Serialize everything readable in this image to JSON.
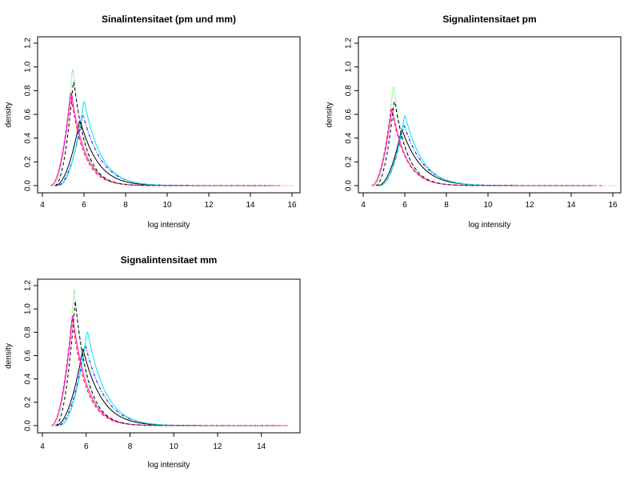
{
  "chart_data": [
    {
      "type": "line",
      "title": "Sinalintensitaet (pm und mm)",
      "xlabel": "log intensity",
      "ylabel": "density",
      "xlim": [
        4,
        16
      ],
      "ylim": [
        0,
        1.2
      ],
      "xticks": [
        "4",
        "6",
        "8",
        "10",
        "12",
        "14",
        "16"
      ],
      "yticks": [
        "0.0",
        "0.2",
        "0.4",
        "0.6",
        "0.8",
        "1.0",
        "1.2"
      ],
      "grid": false,
      "series": [
        {
          "color": "#000000",
          "dash": "solid",
          "start": 4.6,
          "mode": 5.8,
          "peak": 0.56,
          "end": 15.2,
          "k": 1.5,
          "up": 2.0
        },
        {
          "color": "#ff0000",
          "dash": "dashed",
          "start": 4.4,
          "mode": 5.35,
          "peak": 0.78,
          "end": 15.6,
          "k": 1.9,
          "up": 2.0
        },
        {
          "color": "#00cd00",
          "dash": "dotted",
          "start": 4.5,
          "mode": 5.45,
          "peak": 1.01,
          "end": 15.0,
          "k": 2.1,
          "up": 2.0
        },
        {
          "color": "#0000ff",
          "dash": "dotdash",
          "start": 4.7,
          "mode": 5.95,
          "peak": 0.6,
          "end": 15.0,
          "k": 1.45,
          "up": 2.0
        },
        {
          "color": "#00e5ee",
          "dash": "solid",
          "start": 4.8,
          "mode": 6.0,
          "peak": 0.72,
          "end": 15.0,
          "k": 1.55,
          "up": 2.0
        },
        {
          "color": "#ff00ff",
          "dash": "solid",
          "start": 4.4,
          "mode": 5.38,
          "peak": 0.8,
          "end": 15.2,
          "k": 1.85,
          "up": 2.0
        },
        {
          "color": "#000000",
          "dash": "dashed",
          "start": 4.6,
          "mode": 5.5,
          "peak": 0.9,
          "end": 15.0,
          "k": 2.0,
          "up": 2.0
        },
        {
          "color": "#ff6a6a",
          "dash": "dotted",
          "start": 4.4,
          "mode": 5.4,
          "peak": 0.75,
          "end": 16.1,
          "k": 1.9,
          "up": 2.0
        }
      ]
    },
    {
      "type": "line",
      "title": "Signalintensitaet pm",
      "xlabel": "log intensity",
      "ylabel": "density",
      "xlim": [
        4,
        16
      ],
      "ylim": [
        0,
        1.2
      ],
      "xticks": [
        "4",
        "6",
        "8",
        "10",
        "12",
        "14",
        "16"
      ],
      "yticks": [
        "0.0",
        "0.2",
        "0.4",
        "0.6",
        "0.8",
        "1.0",
        "1.2"
      ],
      "grid": false,
      "series": [
        {
          "color": "#000000",
          "dash": "solid",
          "start": 4.7,
          "mode": 5.85,
          "peak": 0.48,
          "end": 15.1,
          "k": 1.4,
          "up": 2.0
        },
        {
          "color": "#ff0000",
          "dash": "dashed",
          "start": 4.4,
          "mode": 5.35,
          "peak": 0.66,
          "end": 15.5,
          "k": 1.8,
          "up": 2.0
        },
        {
          "color": "#00cd00",
          "dash": "dotted",
          "start": 4.5,
          "mode": 5.45,
          "peak": 0.85,
          "end": 15.0,
          "k": 2.0,
          "up": 2.0
        },
        {
          "color": "#0000ff",
          "dash": "dotdash",
          "start": 4.8,
          "mode": 5.95,
          "peak": 0.52,
          "end": 15.0,
          "k": 1.4,
          "up": 2.0
        },
        {
          "color": "#00e5ee",
          "dash": "solid",
          "start": 4.8,
          "mode": 6.0,
          "peak": 0.6,
          "end": 15.0,
          "k": 1.5,
          "up": 2.0
        },
        {
          "color": "#ff00ff",
          "dash": "solid",
          "start": 4.4,
          "mode": 5.38,
          "peak": 0.66,
          "end": 15.2,
          "k": 1.8,
          "up": 2.0
        },
        {
          "color": "#000000",
          "dash": "dashed",
          "start": 4.6,
          "mode": 5.5,
          "peak": 0.73,
          "end": 15.0,
          "k": 1.9,
          "up": 2.0
        },
        {
          "color": "#ff6a6a",
          "dash": "dotted",
          "start": 4.4,
          "mode": 5.4,
          "peak": 0.64,
          "end": 16.2,
          "k": 1.8,
          "up": 2.0
        }
      ]
    },
    {
      "type": "line",
      "title": "Signalintensitaet mm",
      "xlabel": "log intensity",
      "ylabel": "density",
      "xlim": [
        4,
        15.4
      ],
      "ylim": [
        0,
        1.2
      ],
      "xticks": [
        "4",
        "6",
        "8",
        "10",
        "12",
        "14"
      ],
      "yticks": [
        "0.0",
        "0.2",
        "0.4",
        "0.6",
        "0.8",
        "1.0",
        "1.2"
      ],
      "grid": false,
      "series": [
        {
          "color": "#000000",
          "dash": "solid",
          "start": 4.6,
          "mode": 5.85,
          "peak": 0.66,
          "end": 14.8,
          "k": 1.5,
          "up": 2.0
        },
        {
          "color": "#ff0000",
          "dash": "dashed",
          "start": 4.4,
          "mode": 5.35,
          "peak": 0.93,
          "end": 15.2,
          "k": 1.9,
          "up": 2.0
        },
        {
          "color": "#00cd00",
          "dash": "dotted",
          "start": 4.5,
          "mode": 5.45,
          "peak": 1.17,
          "end": 14.8,
          "k": 2.1,
          "up": 2.0
        },
        {
          "color": "#0000ff",
          "dash": "dotdash",
          "start": 4.7,
          "mode": 5.95,
          "peak": 0.7,
          "end": 14.8,
          "k": 1.45,
          "up": 2.0
        },
        {
          "color": "#00e5ee",
          "dash": "solid",
          "start": 4.8,
          "mode": 6.05,
          "peak": 0.82,
          "end": 14.8,
          "k": 1.55,
          "up": 2.0
        },
        {
          "color": "#ff00ff",
          "dash": "solid",
          "start": 4.4,
          "mode": 5.38,
          "peak": 0.95,
          "end": 15.0,
          "k": 1.85,
          "up": 2.0
        },
        {
          "color": "#000000",
          "dash": "dashed",
          "start": 4.6,
          "mode": 5.5,
          "peak": 1.07,
          "end": 14.8,
          "k": 2.0,
          "up": 2.0
        },
        {
          "color": "#ff6a6a",
          "dash": "dotted",
          "start": 4.4,
          "mode": 5.4,
          "peak": 0.9,
          "end": 15.3,
          "k": 1.9,
          "up": 2.0
        }
      ]
    }
  ]
}
